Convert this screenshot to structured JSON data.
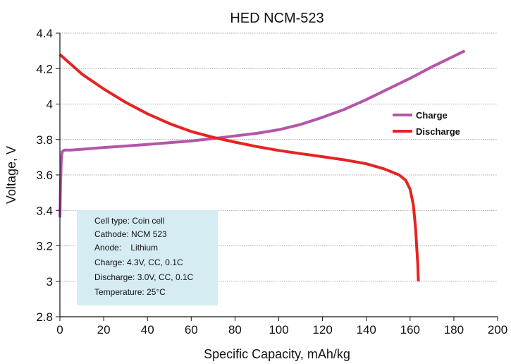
{
  "chart_data": {
    "type": "line",
    "title": "HED NCM-523",
    "xlabel": "Specific Capacity, mAh/kg",
    "ylabel": "Voltage, V",
    "xlim": [
      0,
      200
    ],
    "ylim": [
      2.8,
      4.4
    ],
    "xticks": [
      0,
      20,
      40,
      60,
      80,
      100,
      120,
      140,
      160,
      180,
      200
    ],
    "yticks": [
      {
        "value": 2.8,
        "label": "2.8"
      },
      {
        "value": 3.0,
        "label": "3"
      },
      {
        "value": 3.2,
        "label": "3.2"
      },
      {
        "value": 3.4,
        "label": "3.4"
      },
      {
        "value": 3.6,
        "label": "3.6"
      },
      {
        "value": 3.8,
        "label": "3.8"
      },
      {
        "value": 4.0,
        "label": "4"
      },
      {
        "value": 4.2,
        "label": "4.2"
      },
      {
        "value": 4.4,
        "label": "4.4"
      }
    ],
    "grid": "horizontal dotted",
    "legend_position": "right",
    "series": [
      {
        "name": "Charge",
        "color": "#b455aa",
        "points": [
          [
            0,
            3.36
          ],
          [
            0.3,
            3.55
          ],
          [
            0.6,
            3.68
          ],
          [
            1,
            3.73
          ],
          [
            2,
            3.74
          ],
          [
            5,
            3.74
          ],
          [
            10,
            3.745
          ],
          [
            20,
            3.755
          ],
          [
            30,
            3.763
          ],
          [
            40,
            3.772
          ],
          [
            50,
            3.782
          ],
          [
            60,
            3.792
          ],
          [
            70,
            3.805
          ],
          [
            80,
            3.82
          ],
          [
            90,
            3.835
          ],
          [
            100,
            3.855
          ],
          [
            110,
            3.885
          ],
          [
            120,
            3.925
          ],
          [
            130,
            3.97
          ],
          [
            140,
            4.025
          ],
          [
            150,
            4.085
          ],
          [
            160,
            4.145
          ],
          [
            170,
            4.21
          ],
          [
            180,
            4.27
          ],
          [
            185,
            4.3
          ]
        ]
      },
      {
        "name": "Discharge",
        "color": "#e52421",
        "points": [
          [
            0,
            4.28
          ],
          [
            5,
            4.225
          ],
          [
            10,
            4.17
          ],
          [
            20,
            4.085
          ],
          [
            30,
            4.01
          ],
          [
            40,
            3.945
          ],
          [
            50,
            3.89
          ],
          [
            60,
            3.845
          ],
          [
            70,
            3.812
          ],
          [
            80,
            3.785
          ],
          [
            90,
            3.76
          ],
          [
            100,
            3.738
          ],
          [
            110,
            3.72
          ],
          [
            120,
            3.703
          ],
          [
            130,
            3.685
          ],
          [
            140,
            3.663
          ],
          [
            148,
            3.635
          ],
          [
            155,
            3.6
          ],
          [
            158,
            3.57
          ],
          [
            160,
            3.52
          ],
          [
            161.5,
            3.43
          ],
          [
            162.5,
            3.3
          ],
          [
            163,
            3.2
          ],
          [
            163.5,
            3.1
          ],
          [
            163.8,
            3.0
          ]
        ]
      }
    ],
    "annotation_box": {
      "lines": [
        "Cell type: Coin cell",
        "Cathode: NCM 523",
        "Anode:    Lithium",
        "Charge: 4.3V, CC, 0.1C",
        "Discharge: 3.0V, CC, 0.1C",
        "Temperature: 25°C"
      ],
      "background": "#d6ecf3"
    }
  }
}
